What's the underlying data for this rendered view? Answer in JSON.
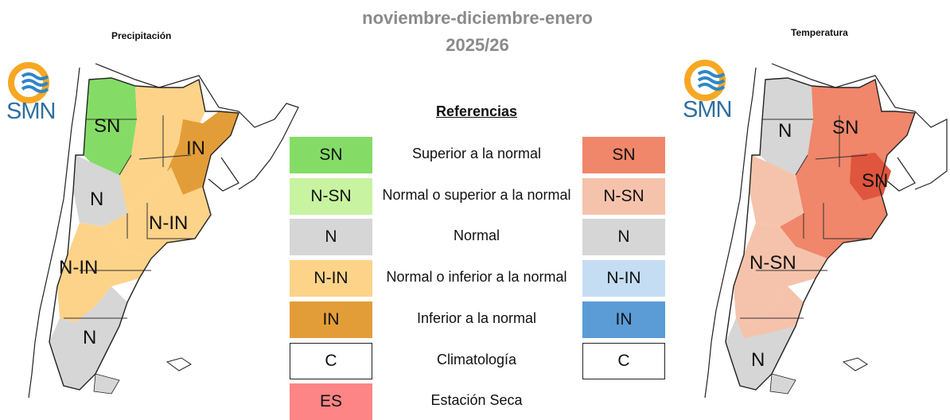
{
  "title": {
    "line1": "noviembre-diciembre-enero",
    "line2": "2025/26"
  },
  "panels": {
    "precipitation": {
      "title": "Precipitación",
      "regions": {
        "north_west": "SN",
        "center_west": "N",
        "center": "N-IN",
        "north_east": "IN",
        "patagonia_north": "N-IN",
        "patagonia_south": "N"
      }
    },
    "temperature": {
      "title": "Temperatura",
      "regions": {
        "north_west": "N",
        "north": "SN",
        "north_east": "SN",
        "patagonia_north": "N-SN",
        "patagonia_south": "N"
      }
    }
  },
  "logo": {
    "text": "SMN"
  },
  "legend": {
    "heading": "Referencias",
    "rows": [
      {
        "code_left": "SN",
        "desc": "Superior a la normal",
        "code_right": "SN",
        "color_left": "#84dc66",
        "color_right": "#f0866a"
      },
      {
        "code_left": "N-SN",
        "desc": "Normal o superior a la normal",
        "code_right": "N-SN",
        "color_left": "#c8f3a0",
        "color_right": "#f5c3ac"
      },
      {
        "code_left": "N",
        "desc": "Normal",
        "code_right": "N",
        "color_left": "#d6d6d6",
        "color_right": "#d6d6d6"
      },
      {
        "code_left": "N-IN",
        "desc": "Normal o inferior a la normal",
        "code_right": "N-IN",
        "color_left": "#fdd389",
        "color_right": "#c5ddf2"
      },
      {
        "code_left": "IN",
        "desc": "Inferior a la normal",
        "code_right": "IN",
        "color_left": "#e39d38",
        "color_right": "#5b9bd6"
      },
      {
        "code_left": "C",
        "desc": "Climatología",
        "code_right": "C",
        "color_left": "#ffffff",
        "color_right": "#ffffff"
      },
      {
        "code_left": "ES",
        "desc": "Estación Seca",
        "color_left": "#fd8585"
      }
    ]
  },
  "colors": {
    "title_gray": "#8a8a8a",
    "logo_orange": "#f7a823",
    "logo_blue": "#2f86c8",
    "outline": "#222222"
  }
}
